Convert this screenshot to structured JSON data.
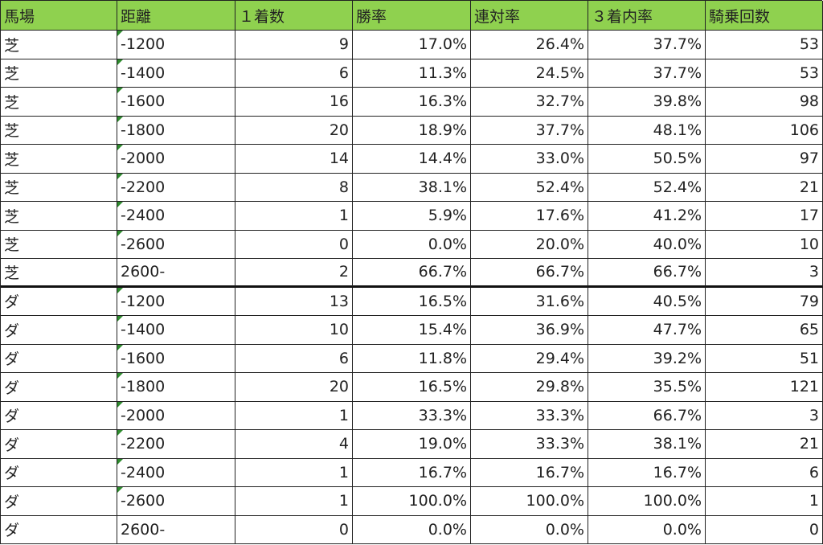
{
  "table": {
    "header": [
      "馬場",
      "距離",
      "１着数",
      "勝率",
      "連対率",
      "３着内率",
      "騎乗回数"
    ],
    "rows": [
      [
        "芝",
        "-1200",
        9,
        "17.0%",
        "26.4%",
        "37.7%",
        53
      ],
      [
        "芝",
        "-1400",
        6,
        "11.3%",
        "24.5%",
        "37.7%",
        53
      ],
      [
        "芝",
        "-1600",
        16,
        "16.3%",
        "32.7%",
        "39.8%",
        98
      ],
      [
        "芝",
        "-1800",
        20,
        "18.9%",
        "37.7%",
        "48.1%",
        106
      ],
      [
        "芝",
        "-2000",
        14,
        "14.4%",
        "33.0%",
        "50.5%",
        97
      ],
      [
        "芝",
        "-2200",
        8,
        "38.1%",
        "52.4%",
        "52.4%",
        21
      ],
      [
        "芝",
        "-2400",
        1,
        "5.9%",
        "17.6%",
        "41.2%",
        17
      ],
      [
        "芝",
        "-2600",
        0,
        "0.0%",
        "20.0%",
        "40.0%",
        10
      ],
      [
        "芝",
        "2600-",
        2,
        "66.7%",
        "66.7%",
        "66.7%",
        3
      ],
      [
        "ダ",
        "-1200",
        13,
        "16.5%",
        "31.6%",
        "40.5%",
        79
      ],
      [
        "ダ",
        "-1400",
        10,
        "15.4%",
        "36.9%",
        "47.7%",
        65
      ],
      [
        "ダ",
        "-1600",
        6,
        "11.8%",
        "29.4%",
        "39.2%",
        51
      ],
      [
        "ダ",
        "-1800",
        20,
        "16.5%",
        "29.8%",
        "35.5%",
        121
      ],
      [
        "ダ",
        "-2000",
        1,
        "33.3%",
        "33.3%",
        "66.7%",
        3
      ],
      [
        "ダ",
        "-2200",
        4,
        "19.0%",
        "33.3%",
        "38.1%",
        21
      ],
      [
        "ダ",
        "-2400",
        1,
        "16.7%",
        "16.7%",
        "16.7%",
        6
      ],
      [
        "ダ",
        "-2600",
        1,
        "100.0%",
        "100.0%",
        "100.0%",
        1
      ],
      [
        "ダ",
        "2600-",
        0,
        "0.0%",
        "0.0%",
        "0.0%",
        0
      ]
    ]
  }
}
